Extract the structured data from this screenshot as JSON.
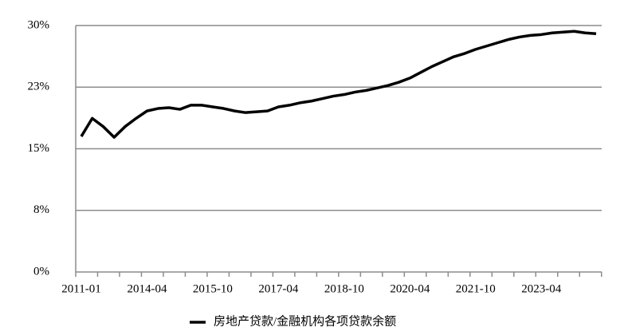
{
  "chart_data": {
    "type": "line",
    "categories": [
      "2011-01",
      null,
      null,
      null,
      null,
      null,
      "2014-04",
      null,
      null,
      null,
      null,
      null,
      "2015-10",
      null,
      null,
      null,
      null,
      null,
      "2017-04",
      null,
      null,
      null,
      null,
      null,
      "2018-10",
      null,
      null,
      null,
      null,
      null,
      "2020-04",
      null,
      null,
      null,
      null,
      null,
      "2021-10",
      null,
      null,
      null,
      null,
      null,
      "2023-04",
      null,
      null,
      null,
      null,
      null
    ],
    "series": [
      {
        "name": "房地产贷款/金融机构各项贷款余额",
        "color": "#000000",
        "values": [
          16.5,
          18.7,
          17.7,
          16.4,
          17.7,
          18.7,
          19.6,
          19.9,
          20.0,
          19.8,
          20.3,
          20.3,
          20.1,
          19.9,
          19.6,
          19.4,
          19.5,
          19.6,
          20.1,
          20.3,
          20.6,
          20.8,
          21.1,
          21.4,
          21.6,
          21.9,
          22.1,
          22.4,
          22.7,
          23.1,
          23.6,
          24.3,
          25.0,
          25.6,
          26.2,
          26.6,
          27.1,
          27.5,
          27.9,
          28.3,
          28.6,
          28.8,
          28.9,
          29.1,
          29.2,
          29.3,
          29.1,
          29.0
        ]
      }
    ],
    "ylim": [
      0,
      30
    ],
    "yticks": [
      {
        "value": 0,
        "label": "0%"
      },
      {
        "value": 7.5,
        "label": "8%"
      },
      {
        "value": 15,
        "label": "15%"
      },
      {
        "value": 22.5,
        "label": "23%"
      },
      {
        "value": 30,
        "label": "30%"
      }
    ],
    "grid": true,
    "legend": "bottom"
  }
}
